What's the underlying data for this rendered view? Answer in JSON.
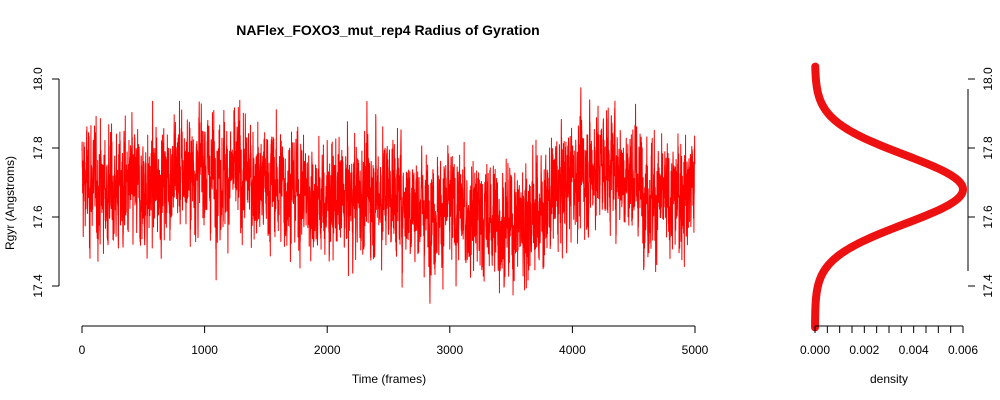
{
  "chart_data": [
    {
      "type": "line",
      "title": "NAFlex_FOXO3_mut_rep4 Radius of Gyration",
      "xlabel": "Time (frames)",
      "ylabel": "Rgyr (Angstroms)",
      "xlim": [
        0,
        5000
      ],
      "ylim": [
        17.3,
        18.03
      ],
      "x_ticks": [
        "0",
        "1000",
        "2000",
        "3000",
        "4000",
        "5000"
      ],
      "y_ticks": [
        "17.4",
        "17.6",
        "17.8",
        "18.0"
      ],
      "series": [
        {
          "color": "#ff0000",
          "trend": {
            "x": [
              0,
              250,
              500,
              750,
              1000,
              1250,
              1500,
              1750,
              2000,
              2250,
              2500,
              2750,
              3000,
              3250,
              3500,
              3750,
              4000,
              4250,
              4500,
              4750,
              5000
            ],
            "y": [
              17.7,
              17.68,
              17.67,
              17.73,
              17.74,
              17.72,
              17.7,
              17.68,
              17.64,
              17.66,
              17.68,
              17.63,
              17.62,
              17.6,
              17.58,
              17.62,
              17.72,
              17.76,
              17.72,
              17.64,
              17.7
            ]
          },
          "n_points": 5000,
          "ymin_observed": 17.3,
          "ymax_observed": 18.03
        }
      ]
    },
    {
      "type": "line",
      "xlabel": "density",
      "x_ticks": [
        "0.000",
        "0.002",
        "0.004",
        "0.006"
      ],
      "xlim": [
        0,
        0.006
      ],
      "y_ticks": [
        "17.4",
        "17.6",
        "17.8",
        "18.0"
      ],
      "ylim": [
        17.3,
        18.03
      ],
      "series": [
        {
          "color": "#ee1111",
          "peak": 17.68,
          "peak_density": 0.006,
          "sd": 0.1
        }
      ]
    }
  ]
}
